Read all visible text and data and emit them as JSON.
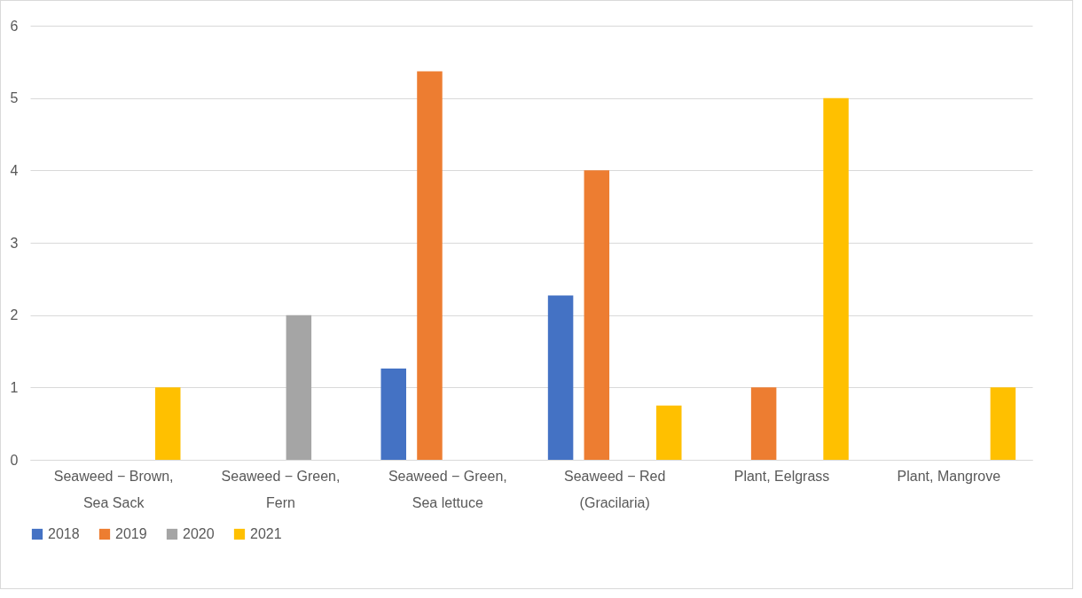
{
  "chart_data": {
    "type": "bar",
    "categories": [
      "Seaweed − Brown, Sea Sack",
      "Seaweed − Green, Fern",
      "Seaweed − Green, Sea lettuce",
      "Seaweed − Red (Gracilaria)",
      "Plant, Eelgrass",
      "Plant, Mangrove"
    ],
    "series": [
      {
        "name": "2018",
        "color": "#4472c4",
        "values": [
          null,
          null,
          1.26,
          2.27,
          null,
          null
        ]
      },
      {
        "name": "2019",
        "color": "#ed7d31",
        "values": [
          null,
          null,
          5.37,
          4,
          1,
          null
        ]
      },
      {
        "name": "2020",
        "color": "#a5a5a5",
        "values": [
          null,
          2,
          null,
          null,
          null,
          null
        ]
      },
      {
        "name": "2021",
        "color": "#ffc000",
        "values": [
          1,
          null,
          null,
          0.75,
          5,
          1
        ]
      }
    ],
    "ylim": [
      0,
      6
    ],
    "yticks": [
      0,
      1,
      2,
      3,
      4,
      5,
      6
    ],
    "grid": "y",
    "legend": "bottom"
  }
}
